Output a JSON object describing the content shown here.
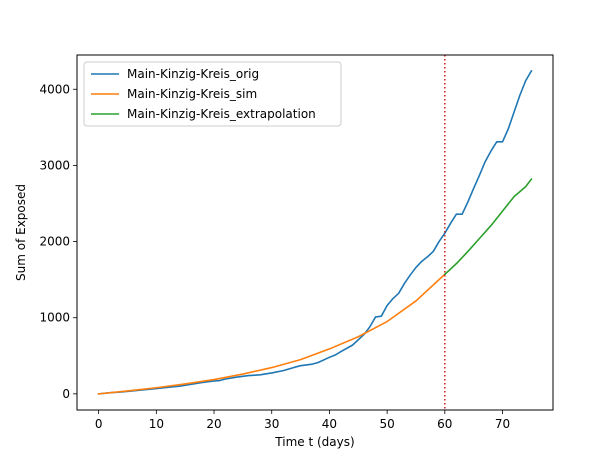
{
  "chart_data": {
    "type": "line",
    "title": "",
    "xlabel": "Time t (days)",
    "ylabel": "Sum of Exposed",
    "xlim": [
      -3.75,
      78.75
    ],
    "ylim": [
      -212,
      4450
    ],
    "xticks": [
      0,
      10,
      20,
      30,
      40,
      50,
      60,
      70
    ],
    "yticks": [
      0,
      1000,
      2000,
      3000,
      4000
    ],
    "grid": false,
    "legend_position": "top-left",
    "vline": {
      "x": 60,
      "color": "#d62728",
      "style": "dotted"
    },
    "series": [
      {
        "name": "Main-Kinzig-Kreis_orig",
        "color": "#1f77b4",
        "x": [
          0,
          2,
          4,
          6,
          8,
          10,
          12,
          14,
          16,
          18,
          20,
          21,
          22,
          24,
          26,
          28,
          30,
          32,
          34,
          35,
          37,
          38,
          40,
          41,
          42,
          44,
          46,
          47,
          48,
          49,
          50,
          51,
          52,
          53,
          54,
          55,
          56,
          57,
          58,
          59,
          60,
          61,
          62,
          63,
          64,
          65,
          66,
          67,
          68,
          69,
          70,
          71,
          72,
          73,
          74,
          75
        ],
        "y": [
          0,
          15,
          25,
          40,
          55,
          70,
          85,
          100,
          125,
          150,
          170,
          175,
          195,
          220,
          240,
          250,
          275,
          305,
          350,
          370,
          390,
          410,
          480,
          510,
          555,
          640,
          780,
          880,
          1010,
          1020,
          1160,
          1250,
          1320,
          1450,
          1560,
          1660,
          1740,
          1800,
          1870,
          2000,
          2110,
          2240,
          2360,
          2360,
          2520,
          2700,
          2870,
          3050,
          3190,
          3310,
          3310,
          3480,
          3700,
          3920,
          4110,
          4240
        ]
      },
      {
        "name": "Main-Kinzig-Kreis_sim",
        "color": "#ff7f0e",
        "x": [
          0,
          5,
          10,
          15,
          20,
          25,
          30,
          35,
          40,
          45,
          50,
          55,
          60
        ],
        "y": [
          0,
          38,
          80,
          130,
          188,
          260,
          345,
          450,
          590,
          750,
          950,
          1220,
          1570
        ]
      },
      {
        "name": "Main-Kinzig-Kreis_extrapolation",
        "color": "#2ca02c",
        "x": [
          60,
          62,
          64,
          66,
          68,
          70,
          72,
          74,
          75
        ],
        "y": [
          1570,
          1710,
          1870,
          2040,
          2210,
          2400,
          2590,
          2720,
          2820
        ]
      }
    ]
  }
}
